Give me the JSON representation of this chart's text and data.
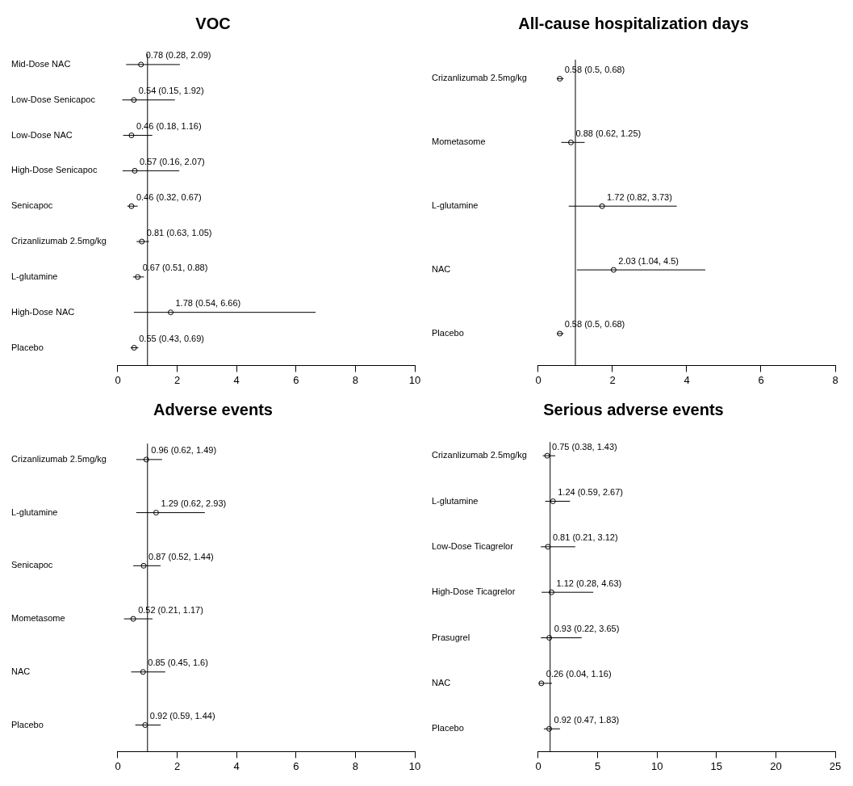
{
  "chart_data": [
    {
      "type": "scatter",
      "title": "VOC",
      "orientation": "horizontal",
      "marker": "circle",
      "grid": false,
      "legend": false,
      "categories": [
        "Mid-Dose NAC",
        "Low-Dose Senicapoc",
        "Low-Dose NAC",
        "High-Dose Senicapoc",
        "Senicapoc",
        "Crizanlizumab 2.5mg/kg",
        "L-glutamine",
        "High-Dose NAC",
        "Placebo"
      ],
      "series": [
        {
          "color": "#000000",
          "values": [
            0.78,
            0.54,
            0.46,
            0.57,
            0.46,
            0.81,
            0.67,
            1.78,
            0.55
          ],
          "errors": [
            [
              0.28,
              2.09
            ],
            [
              0.15,
              1.92
            ],
            [
              0.18,
              1.16
            ],
            [
              0.16,
              2.07
            ],
            [
              0.32,
              0.67
            ],
            [
              0.63,
              1.05
            ],
            [
              0.51,
              0.88
            ],
            [
              0.54,
              6.66
            ],
            [
              0.43,
              0.69
            ]
          ],
          "value_labels": [
            "0.78 (0.28, 2.09)",
            "0.54 (0.15, 1.92)",
            "0.46 (0.18, 1.16)",
            "0.57 (0.16, 2.07)",
            "0.46 (0.32, 0.67)",
            "0.81 (0.63, 1.05)",
            "0.67 (0.51, 0.88)",
            "1.78 (0.54, 6.66)",
            "0.55 (0.43, 0.69)"
          ]
        }
      ],
      "xlim": [
        0,
        10
      ],
      "xticks": [
        0,
        2,
        4,
        6,
        8,
        10
      ],
      "ref_lines": [
        {
          "axis": "x",
          "value": 1,
          "color": "#000000"
        }
      ]
    },
    {
      "type": "scatter",
      "title": "All-cause hospitalization days",
      "orientation": "horizontal",
      "marker": "circle",
      "grid": false,
      "legend": false,
      "categories": [
        "Crizanlizumab 2.5mg/kg",
        "Mometasome",
        "L-glutamine",
        "NAC",
        "Placebo"
      ],
      "series": [
        {
          "color": "#000000",
          "values": [
            0.58,
            0.88,
            1.72,
            2.03,
            0.58
          ],
          "errors": [
            [
              0.5,
              0.68
            ],
            [
              0.62,
              1.25
            ],
            [
              0.82,
              3.73
            ],
            [
              1.04,
              4.5
            ],
            [
              0.5,
              0.68
            ]
          ],
          "value_labels": [
            "0.58 (0.5, 0.68)",
            "0.88 (0.62, 1.25)",
            "1.72 (0.82, 3.73)",
            "2.03 (1.04, 4.5)",
            "0.58 (0.5, 0.68)"
          ]
        }
      ],
      "xlim": [
        0,
        8
      ],
      "xticks": [
        0,
        2,
        4,
        6,
        8
      ],
      "ref_lines": [
        {
          "axis": "x",
          "value": 1,
          "color": "#000000"
        }
      ]
    },
    {
      "type": "scatter",
      "title": "Adverse events",
      "orientation": "horizontal",
      "marker": "circle",
      "grid": false,
      "legend": false,
      "categories": [
        "Crizanlizumab 2.5mg/kg",
        "L-glutamine",
        "Senicapoc",
        "Mometasome",
        "NAC",
        "Placebo"
      ],
      "series": [
        {
          "color": "#000000",
          "values": [
            0.96,
            1.29,
            0.87,
            0.52,
            0.85,
            0.92
          ],
          "errors": [
            [
              0.62,
              1.49
            ],
            [
              0.62,
              2.93
            ],
            [
              0.52,
              1.44
            ],
            [
              0.21,
              1.17
            ],
            [
              0.45,
              1.6
            ],
            [
              0.59,
              1.44
            ]
          ],
          "value_labels": [
            "0.96 (0.62, 1.49)",
            "1.29 (0.62, 2.93)",
            "0.87 (0.52, 1.44)",
            "0.52 (0.21, 1.17)",
            "0.85 (0.45, 1.6)",
            "0.92 (0.59, 1.44)"
          ]
        }
      ],
      "xlim": [
        0,
        10
      ],
      "xticks": [
        0,
        2,
        4,
        6,
        8,
        10
      ],
      "ref_lines": [
        {
          "axis": "x",
          "value": 1,
          "color": "#000000"
        }
      ]
    },
    {
      "type": "scatter",
      "title": "Serious adverse events",
      "orientation": "horizontal",
      "marker": "circle",
      "grid": false,
      "legend": false,
      "categories": [
        "Crizanlizumab 2.5mg/kg",
        "L-glutamine",
        "Low-Dose Ticagrelor",
        "High-Dose Ticagrelor",
        "Prasugrel",
        "NAC",
        "Placebo"
      ],
      "series": [
        {
          "color": "#000000",
          "values": [
            0.75,
            1.24,
            0.81,
            1.12,
            0.93,
            0.26,
            0.92
          ],
          "errors": [
            [
              0.38,
              1.43
            ],
            [
              0.59,
              2.67
            ],
            [
              0.21,
              3.12
            ],
            [
              0.28,
              4.63
            ],
            [
              0.22,
              3.65
            ],
            [
              0.04,
              1.16
            ],
            [
              0.47,
              1.83
            ]
          ],
          "value_labels": [
            "0.75 (0.38, 1.43)",
            "1.24 (0.59, 2.67)",
            "0.81 (0.21, 3.12)",
            "1.12 (0.28, 4.63)",
            "0.93 (0.22, 3.65)",
            "0.26 (0.04, 1.16)",
            "0.92 (0.47, 1.83)"
          ]
        }
      ],
      "xlim": [
        0,
        25
      ],
      "xticks": [
        0,
        5,
        10,
        15,
        20,
        25
      ],
      "ref_lines": [
        {
          "axis": "x",
          "value": 1,
          "color": "#000000"
        }
      ]
    }
  ]
}
